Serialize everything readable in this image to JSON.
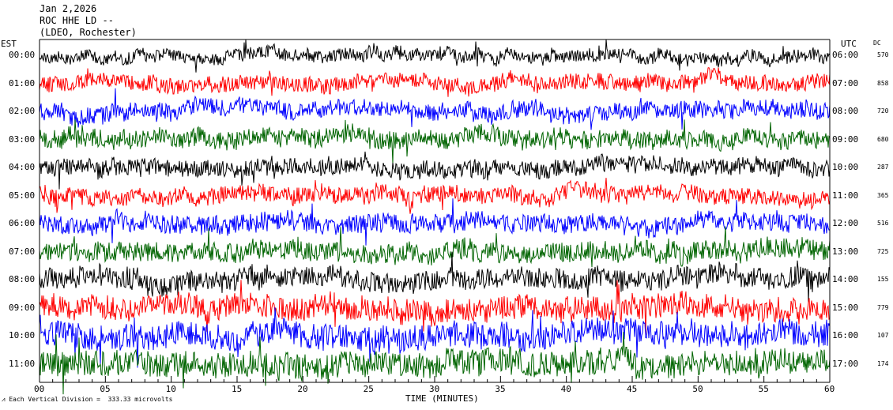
{
  "header": {
    "date": "Jan 2,2026",
    "station": "ROC HHE LD --",
    "location": "(LDEO, Rochester)"
  },
  "left_zone": "EST",
  "right_zone": "UTC",
  "dc_header": "DC",
  "footer_text": "Each Vertical Division =  333.33 microvolts",
  "footer_icon": "seismometer-icon",
  "colors": {
    "trace_cycle": [
      "#000000",
      "#ff0000",
      "#0000ff",
      "#006400"
    ],
    "axes": "#000000",
    "background": "#ffffff"
  },
  "chart_data": {
    "type": "line",
    "title": "ROC HHE LD --",
    "xlabel": "TIME (MINUTES)",
    "ylabel": "",
    "xlim": [
      0,
      60
    ],
    "x_ticks": [
      "00",
      "05",
      "10",
      "15",
      "20",
      "25",
      "30",
      "35",
      "40",
      "45",
      "50",
      "55",
      "60"
    ],
    "grid": false,
    "series": [
      {
        "est": "00:00",
        "utc": "06:00",
        "dc": "570",
        "color": "#000000",
        "noise_amplitude": 0.45
      },
      {
        "est": "01:00",
        "utc": "07:00",
        "dc": "858",
        "color": "#ff0000",
        "noise_amplitude": 0.55
      },
      {
        "est": "02:00",
        "utc": "08:00",
        "dc": "720",
        "color": "#0000ff",
        "noise_amplitude": 0.6
      },
      {
        "est": "03:00",
        "utc": "09:00",
        "dc": "680",
        "color": "#006400",
        "noise_amplitude": 0.65
      },
      {
        "est": "04:00",
        "utc": "10:00",
        "dc": "287",
        "color": "#000000",
        "noise_amplitude": 0.6
      },
      {
        "est": "05:00",
        "utc": "11:00",
        "dc": "365",
        "color": "#ff0000",
        "noise_amplitude": 0.6
      },
      {
        "est": "06:00",
        "utc": "12:00",
        "dc": "516",
        "color": "#0000ff",
        "noise_amplitude": 0.65
      },
      {
        "est": "07:00",
        "utc": "13:00",
        "dc": "725",
        "color": "#006400",
        "noise_amplitude": 0.7
      },
      {
        "est": "08:00",
        "utc": "14:00",
        "dc": "155",
        "color": "#000000",
        "noise_amplitude": 0.75
      },
      {
        "est": "09:00",
        "utc": "15:00",
        "dc": "779",
        "color": "#ff0000",
        "noise_amplitude": 0.85
      },
      {
        "est": "10:00",
        "utc": "16:00",
        "dc": "107",
        "color": "#0000ff",
        "noise_amplitude": 0.9
      },
      {
        "est": "11:00",
        "utc": "17:00",
        "dc": "174",
        "color": "#006400",
        "noise_amplitude": 0.9
      }
    ]
  }
}
